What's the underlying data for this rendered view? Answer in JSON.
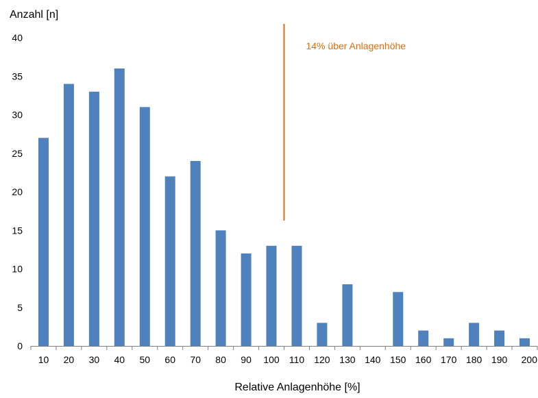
{
  "chart_data": {
    "type": "bar",
    "title": "",
    "ylabel": "Anzahl [n]",
    "xlabel": "Relative Anlagenhöhe [%]",
    "ylim": [
      0,
      40
    ],
    "yticks": [
      0,
      5,
      10,
      15,
      20,
      25,
      30,
      35,
      40
    ],
    "categories": [
      "10",
      "20",
      "30",
      "40",
      "50",
      "60",
      "70",
      "80",
      "90",
      "100",
      "110",
      "120",
      "130",
      "140",
      "150",
      "160",
      "170",
      "180",
      "190",
      "200"
    ],
    "values": [
      27,
      34,
      33,
      36,
      31,
      22,
      24,
      15,
      12,
      13,
      13,
      3,
      8,
      0,
      7,
      2,
      1,
      3,
      2,
      1
    ],
    "grid": false,
    "legend": "none",
    "bar_color": "#4F81BD",
    "annotation": {
      "text": "14% über Anlagenhöhe",
      "color": "#E46C0A",
      "x": 105
    }
  }
}
